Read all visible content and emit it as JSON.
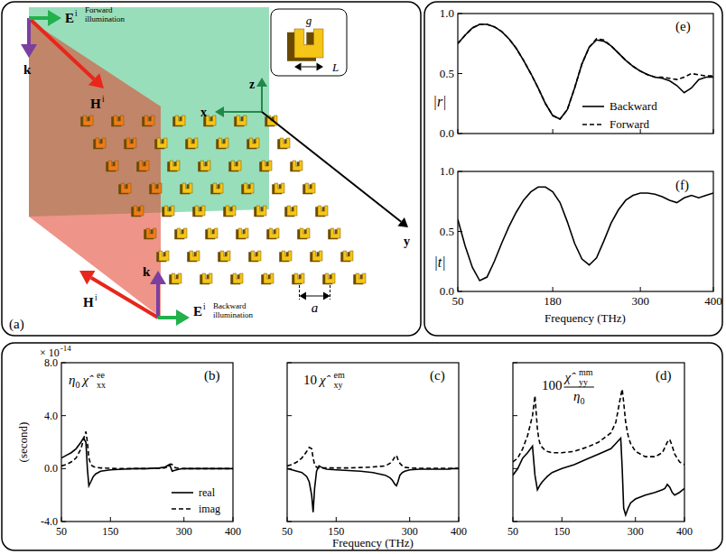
{
  "diagram": {
    "panel_label": "(a)",
    "forward": {
      "caption": "Forward illumination",
      "E": "E",
      "E_sup": "i",
      "H": "H",
      "H_sup": "i",
      "k": "k"
    },
    "backward": {
      "caption": "Backward illumination",
      "E": "E",
      "E_sup": "i",
      "H": "H",
      "H_sup": "i",
      "k": "k"
    },
    "axes": {
      "x": "x",
      "y": "y",
      "z": "z"
    },
    "inset": {
      "g": "g",
      "L": "L"
    },
    "period": "a"
  },
  "chart_data": [
    {
      "type": "line",
      "panel_label": "(e)",
      "y_label": "|r|",
      "x": [
        50,
        60,
        70,
        80,
        90,
        100,
        110,
        120,
        130,
        140,
        150,
        160,
        170,
        180,
        190,
        200,
        210,
        220,
        230,
        240,
        250,
        260,
        270,
        280,
        290,
        300,
        310,
        320,
        330,
        340,
        350,
        360,
        370,
        380,
        390,
        400
      ],
      "xlim": [
        50,
        400
      ],
      "xticks": [
        50,
        180,
        300,
        400
      ],
      "ylim": [
        0,
        1
      ],
      "yticks": [
        {
          "value": 0,
          "label": "0.0"
        },
        0.5,
        {
          "value": 1,
          "label": "1.0"
        }
      ],
      "grid": false,
      "tick_labels": "y",
      "legend": "bottom",
      "series": [
        {
          "name": "Backward",
          "color": "#000000",
          "line_style": "solid",
          "values": [
            0.75,
            0.82,
            0.88,
            0.91,
            0.91,
            0.89,
            0.85,
            0.79,
            0.71,
            0.61,
            0.5,
            0.38,
            0.25,
            0.15,
            0.12,
            0.2,
            0.38,
            0.58,
            0.72,
            0.78,
            0.77,
            0.73,
            0.67,
            0.61,
            0.56,
            0.52,
            0.49,
            0.47,
            0.46,
            0.44,
            0.4,
            0.34,
            0.38,
            0.45,
            0.47,
            0.47
          ]
        },
        {
          "name": "Forward",
          "color": "#000000",
          "line_style": "dashed",
          "values": [
            0.75,
            0.82,
            0.88,
            0.91,
            0.91,
            0.89,
            0.85,
            0.79,
            0.71,
            0.61,
            0.5,
            0.38,
            0.25,
            0.15,
            0.12,
            0.2,
            0.38,
            0.58,
            0.72,
            0.79,
            0.78,
            0.73,
            0.67,
            0.61,
            0.56,
            0.52,
            0.49,
            0.47,
            0.47,
            0.46,
            0.45,
            0.47,
            0.5,
            0.49,
            0.48,
            0.48
          ]
        }
      ]
    },
    {
      "type": "line",
      "panel_label": "(f)",
      "y_label": "|t|",
      "x_label": "Frequency (THz)",
      "x": [
        50,
        60,
        70,
        80,
        90,
        100,
        110,
        120,
        130,
        140,
        150,
        160,
        170,
        180,
        190,
        200,
        210,
        220,
        230,
        240,
        250,
        260,
        270,
        280,
        290,
        300,
        310,
        320,
        330,
        340,
        350,
        360,
        370,
        380,
        390,
        400
      ],
      "xlim": [
        50,
        400
      ],
      "xticks": [
        50,
        180,
        300,
        400
      ],
      "ylim": [
        0,
        1
      ],
      "yticks": [
        {
          "value": 0,
          "label": "0.0"
        },
        0.5,
        {
          "value": 1,
          "label": "1.0"
        }
      ],
      "grid": false,
      "series": [
        {
          "color": "#000000",
          "line_style": "solid",
          "values": [
            0.6,
            0.38,
            0.2,
            0.09,
            0.12,
            0.25,
            0.4,
            0.54,
            0.66,
            0.76,
            0.83,
            0.87,
            0.87,
            0.83,
            0.74,
            0.58,
            0.4,
            0.27,
            0.22,
            0.28,
            0.42,
            0.57,
            0.68,
            0.76,
            0.8,
            0.82,
            0.82,
            0.81,
            0.79,
            0.76,
            0.74,
            0.78,
            0.8,
            0.78,
            0.8,
            0.82
          ]
        }
      ]
    },
    {
      "type": "line",
      "panel_label": "(b)",
      "y_label": "(second)",
      "y_multiplier": "× 10",
      "y_multiplier_exp": "-14",
      "quantity": {
        "factor": "η",
        "factor_sub": "0",
        "symbol": "χ̂",
        "sup": "ee",
        "sub": "xx"
      },
      "x": [
        50,
        60,
        70,
        80,
        90,
        95,
        100,
        103,
        106,
        110,
        115,
        120,
        130,
        150,
        175,
        200,
        225,
        250,
        260,
        265,
        270,
        273,
        276,
        280,
        285,
        290,
        300,
        320,
        340,
        355,
        360,
        365,
        370,
        375,
        380,
        390,
        400
      ],
      "xlim": [
        50,
        400
      ],
      "xticks": [
        50,
        150,
        300,
        400
      ],
      "ylim": [
        -4,
        8
      ],
      "yticks": [
        {
          "value": -4,
          "label": "-4.0"
        },
        {
          "value": 0,
          "label": "0.0"
        },
        {
          "value": 4,
          "label": "4.0"
        },
        {
          "value": 8,
          "label": "8.0"
        }
      ],
      "grid": false,
      "legend": "bottom-right",
      "series": [
        {
          "name": "real",
          "color": "#000000",
          "line_style": "solid",
          "values": [
            0.8,
            1.0,
            1.2,
            1.5,
            2.0,
            2.3,
            2.0,
            0.0,
            -1.3,
            -1.0,
            -0.6,
            -0.4,
            -0.2,
            -0.1,
            -0.05,
            0,
            0,
            0.05,
            0.1,
            0.2,
            0.3,
            0.1,
            -0.2,
            -0.15,
            -0.1,
            -0.05,
            0,
            0,
            0,
            0,
            0,
            0,
            0,
            0,
            0,
            0,
            0
          ]
        },
        {
          "name": "imag",
          "color": "#000000",
          "line_style": "dashed",
          "values": [
            0.2,
            0.3,
            0.5,
            0.8,
            1.5,
            2.2,
            2.8,
            2.0,
            0.8,
            0.3,
            0.15,
            0.1,
            0.05,
            0.02,
            0,
            0,
            0,
            0.02,
            0.05,
            0.1,
            0.2,
            0.35,
            0.3,
            0.1,
            0.05,
            0.02,
            0,
            0,
            0,
            0,
            0,
            0,
            0,
            0,
            0,
            0,
            0
          ]
        }
      ]
    },
    {
      "type": "line",
      "panel_label": "(c)",
      "x_label": "Frequency (THz)",
      "quantity": {
        "factor": "10",
        "symbol": "χ̂",
        "sup": "em",
        "sub": "xy"
      },
      "x": [
        50,
        60,
        70,
        80,
        90,
        95,
        100,
        103,
        106,
        110,
        115,
        120,
        130,
        150,
        175,
        200,
        225,
        250,
        260,
        265,
        270,
        273,
        276,
        280,
        285,
        290,
        300,
        320,
        340,
        355,
        360,
        365,
        370,
        375,
        380,
        390,
        400
      ],
      "xlim": [
        50,
        400
      ],
      "xticks": [
        50,
        150,
        300,
        400
      ],
      "ylim": [
        -4,
        8
      ],
      "yticks": [
        -4,
        0,
        4,
        8
      ],
      "grid": false,
      "tick_labels": "x",
      "series": [
        {
          "color": "#000000",
          "line_style": "solid",
          "values": [
            0,
            -0.1,
            -0.2,
            -0.3,
            -0.6,
            -1.0,
            -2.0,
            -3.3,
            -1.5,
            -0.2,
            0.2,
            0.1,
            -0.05,
            -0.1,
            -0.15,
            -0.2,
            -0.3,
            -0.5,
            -0.7,
            -0.9,
            -1.2,
            -1.3,
            -1.0,
            -0.5,
            -0.3,
            -0.2,
            -0.1,
            -0.05,
            -0.05,
            -0.05,
            -0.05,
            -0.05,
            -0.05,
            -0.05,
            -0.05,
            0,
            0
          ]
        },
        {
          "color": "#000000",
          "line_style": "dashed",
          "values": [
            0.2,
            0.3,
            0.5,
            0.8,
            1.3,
            1.6,
            1.5,
            0.8,
            0.3,
            0.1,
            0.05,
            0.05,
            0.05,
            0.05,
            0.05,
            0.08,
            0.12,
            0.2,
            0.4,
            0.6,
            0.9,
            1.0,
            0.7,
            0.4,
            0.2,
            0.1,
            0.05,
            0.02,
            0.02,
            0.02,
            0.02,
            0.02,
            0.02,
            0.02,
            0.02,
            0.02,
            0.02
          ]
        }
      ]
    },
    {
      "type": "line",
      "panel_label": "(d)",
      "quantity": {
        "factor": "100",
        "symbol": "χ̂",
        "sup": "mm",
        "sub": "yy",
        "denominator": "η",
        "denominator_sub": "0"
      },
      "x": [
        50,
        60,
        70,
        80,
        90,
        95,
        100,
        103,
        106,
        110,
        115,
        120,
        130,
        150,
        175,
        200,
        225,
        250,
        260,
        265,
        270,
        273,
        276,
        280,
        285,
        290,
        300,
        320,
        340,
        355,
        360,
        365,
        370,
        375,
        380,
        390,
        400
      ],
      "xlim": [
        50,
        400
      ],
      "xticks": [
        50,
        150,
        300,
        400
      ],
      "ylim": [
        -4,
        8
      ],
      "yticks": [
        -4,
        0,
        4,
        8
      ],
      "grid": false,
      "tick_labels": "x",
      "series": [
        {
          "color": "#000000",
          "line_style": "solid",
          "values": [
            -0.5,
            0,
            0.8,
            1.2,
            1.7,
            -0.5,
            -1.6,
            -1.4,
            -1.2,
            -1.0,
            -0.8,
            -0.6,
            -0.3,
            0,
            0.3,
            0.7,
            1.1,
            1.5,
            1.9,
            2.1,
            2.3,
            0,
            -3.0,
            -3.5,
            -3.0,
            -2.6,
            -2.3,
            -2.0,
            -1.8,
            -1.6,
            -1.5,
            -1.2,
            -1.4,
            -1.8,
            -2.0,
            -1.8,
            -1.5
          ]
        },
        {
          "color": "#000000",
          "line_style": "dashed",
          "values": [
            0.5,
            0.8,
            1.5,
            2.5,
            4.0,
            5.5,
            3.0,
            2.2,
            1.8,
            1.6,
            1.4,
            1.3,
            1.2,
            1.2,
            1.3,
            1.6,
            2.0,
            2.7,
            3.5,
            4.5,
            5.5,
            6.0,
            5.0,
            3.5,
            2.5,
            1.9,
            1.3,
            0.9,
            0.9,
            1.2,
            1.6,
            2.0,
            2.2,
            1.7,
            1.1,
            0.5,
            0.3
          ]
        }
      ]
    }
  ]
}
